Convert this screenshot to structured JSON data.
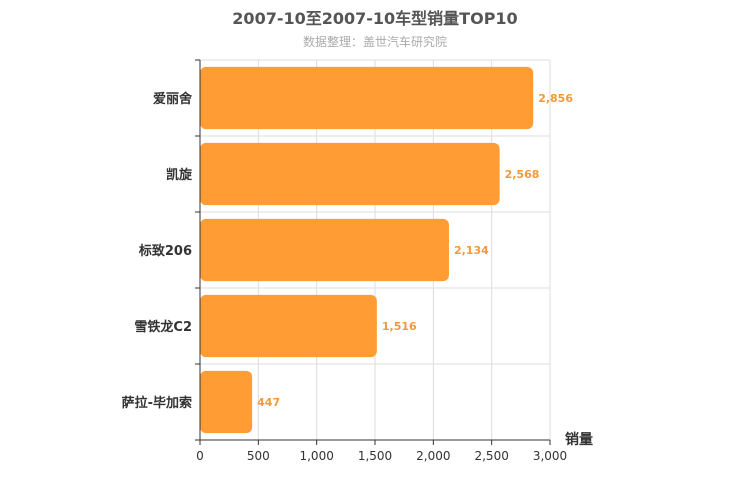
{
  "chart_data": {
    "type": "bar",
    "orientation": "horizontal",
    "title": "2007-10至2007-10车型销量TOP10",
    "subtitle": "数据整理：盖世汽车研究院",
    "categories": [
      "爱丽舍",
      "凯旋",
      "标致206",
      "雪铁龙C2",
      "萨拉-毕加索"
    ],
    "values": [
      2856,
      2568,
      2134,
      1516,
      447
    ],
    "value_labels": [
      "2,856",
      "2,568",
      "2,134",
      "1,516",
      "447"
    ],
    "xlabel": "销量",
    "ylabel": "",
    "xlim": [
      0,
      3000
    ],
    "xticks": [
      0,
      500,
      1000,
      1500,
      2000,
      2500,
      3000
    ],
    "xtick_labels": [
      "0",
      "500",
      "1,000",
      "1,500",
      "2,000",
      "2,500",
      "3,000"
    ],
    "grid": true,
    "bar_color": "#FF9C33",
    "label_color": "#F29A3A"
  }
}
